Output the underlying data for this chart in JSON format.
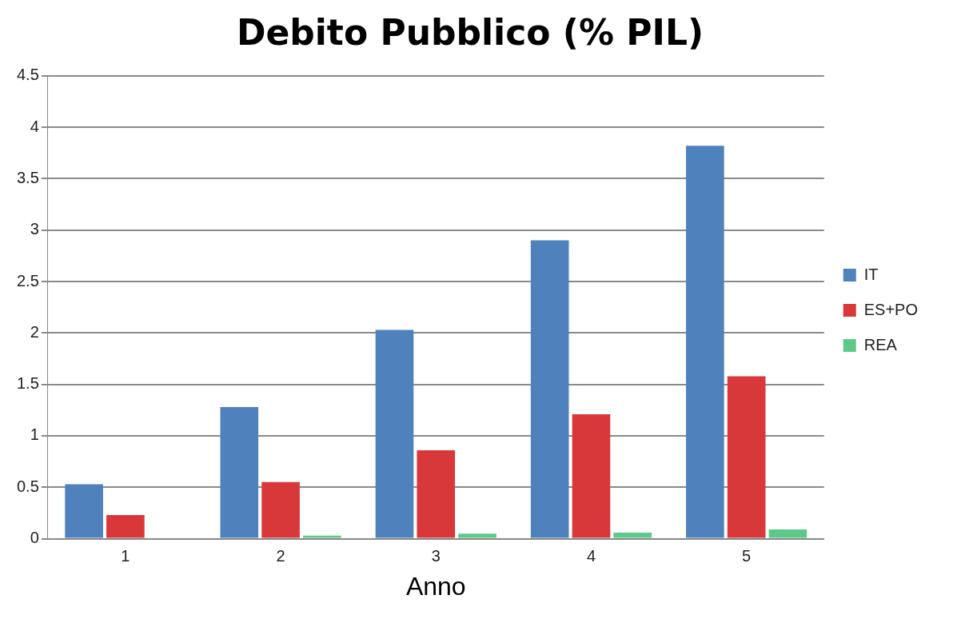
{
  "chart_data": {
    "type": "bar",
    "title": "Debito Pubblico (% PIL)",
    "xlabel": "Anno",
    "categories": [
      "1",
      "2",
      "3",
      "4",
      "5"
    ],
    "series": [
      {
        "name": "IT",
        "color": "#4f81bd",
        "values": [
          0.53,
          1.28,
          2.03,
          2.9,
          3.82
        ]
      },
      {
        "name": "ES+PO",
        "color": "#d9383a",
        "values": [
          0.23,
          0.55,
          0.86,
          1.21,
          1.58
        ]
      },
      {
        "name": "REA",
        "color": "#5cc98a",
        "values": [
          0,
          0.03,
          0.05,
          0.06,
          0.09
        ]
      }
    ],
    "ylim": [
      0,
      4.5
    ],
    "yticks": [
      0,
      0.5,
      1,
      1.5,
      2,
      2.5,
      3,
      3.5,
      4,
      4.5
    ],
    "grid": "y",
    "legend": "right"
  }
}
